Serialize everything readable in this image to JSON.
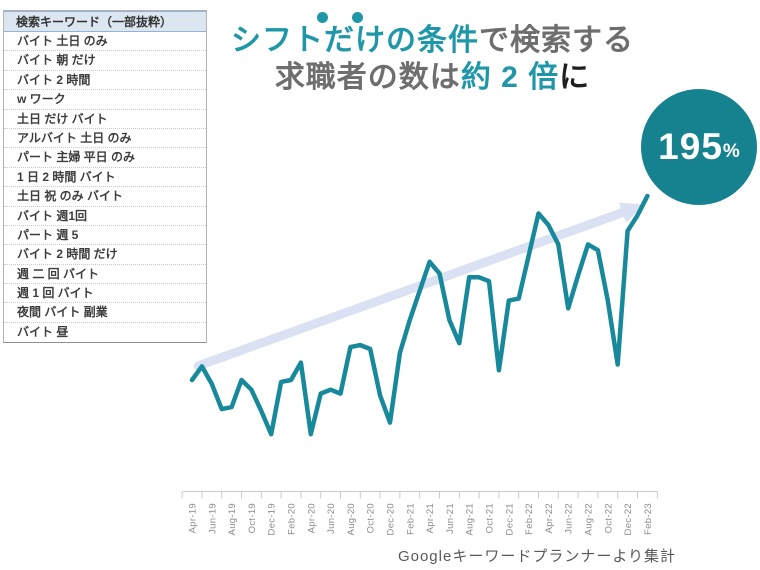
{
  "title": {
    "line1_highlight": "シフトだけの条件",
    "line1_rest": "で検索する",
    "line2_prefix": "求職者の数は",
    "line2_highlight": "約 2 倍",
    "line2_suffix": "に"
  },
  "badge": {
    "value": "195",
    "unit": "%"
  },
  "table": {
    "header": "検索キーワード（一部抜粋）",
    "rows": [
      "バイト 土日 のみ",
      "バイト 朝 だけ",
      "バイト 2 時間",
      "w ワーク",
      "土日 だけ バイト",
      "アルバイト 土日 のみ",
      "パート 主婦 平日 のみ",
      "1 日 2 時間 バイト",
      "土日 祝 のみ バイト",
      "バイト 週1回",
      "パート 週 5",
      "バイト 2 時間 だけ",
      "週 二 回 バイト",
      "週 1 回 バイト",
      "夜間 バイト 副業",
      "バイト 昼"
    ]
  },
  "footer": "Googleキーワードプランナーより集計",
  "colors": {
    "accent_teal": "#1f97a8",
    "line_teal": "#18899a",
    "circle_teal": "#16818f",
    "arrow": "#d9e1f2",
    "axis_gray": "#c9c9c9",
    "axis_label_gray": "#8c8c8c",
    "title_gray": "#6e6e6e",
    "title_dark": "#1f1f1f"
  },
  "chart_data": {
    "type": "line",
    "title": "シフトだけの条件で検索する求職者の数は約2倍に",
    "xlabel": "",
    "ylabel": "",
    "x": [
      "Apr-19",
      "May-19",
      "Jun-19",
      "Jul-19",
      "Aug-19",
      "Sep-19",
      "Oct-19",
      "Nov-19",
      "Dec-19",
      "Jan-20",
      "Feb-20",
      "Mar-20",
      "Apr-20",
      "May-20",
      "Jun-20",
      "Jul-20",
      "Aug-20",
      "Sep-20",
      "Oct-20",
      "Nov-20",
      "Dec-20",
      "Jan-21",
      "Feb-21",
      "Mar-21",
      "Apr-21",
      "May-21",
      "Jun-21",
      "Jul-21",
      "Aug-21",
      "Sep-21",
      "Oct-21",
      "Nov-21",
      "Dec-21",
      "Jan-22",
      "Feb-22",
      "Mar-22",
      "Apr-22",
      "May-22",
      "Jun-22",
      "Jul-22",
      "Aug-22",
      "Sep-22",
      "Oct-22",
      "Nov-22",
      "Dec-22",
      "Jan-23",
      "Feb-23"
    ],
    "values": [
      100,
      107,
      98,
      85,
      86,
      100,
      95,
      84,
      72,
      99,
      100,
      109,
      72,
      93,
      95,
      93,
      117,
      118,
      116,
      92,
      78,
      114,
      131,
      146,
      161,
      155,
      131,
      119,
      153,
      153,
      151,
      105,
      141,
      142,
      164,
      186,
      180,
      170,
      137,
      154,
      170,
      167,
      141,
      108,
      177,
      185,
      195
    ],
    "tick_labels": [
      "Apr-19",
      "Jun-19",
      "Aug-19",
      "Oct-19",
      "Dec-19",
      "Feb-20",
      "Apr-20",
      "Jun-20",
      "Aug-20",
      "Oct-20",
      "Dec-20",
      "Feb-21",
      "Apr-21",
      "Jun-21",
      "Aug-21",
      "Oct-21",
      "Dec-21",
      "Feb-22",
      "Apr-22",
      "Jun-22",
      "Aug-22",
      "Oct-22",
      "Dec-22",
      "Feb-23"
    ],
    "ylim": [
      60,
      210
    ],
    "y_axis_visible": false,
    "grid": false,
    "legend": false,
    "annotations": [
      "195%",
      "upward trend arrow"
    ],
    "end_value_pct": "195%"
  }
}
